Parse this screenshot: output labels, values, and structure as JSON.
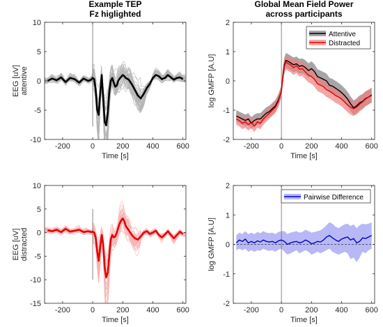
{
  "chart_data": [
    {
      "id": "tep_attentive",
      "type": "line",
      "title": [
        "Example TEP",
        "Fz higlighted"
      ],
      "xlabel": "Time [s]",
      "ylabel": [
        "EEG [uV]",
        "attentive"
      ],
      "xlim": [
        -320,
        620
      ],
      "ylim": [
        -10,
        10
      ],
      "xticks": [
        -200,
        0,
        200,
        400,
        600
      ],
      "yticks": [
        -10,
        -5,
        0,
        5,
        10
      ],
      "colors": {
        "highlight": "#000000",
        "background": "#b4b4b4"
      },
      "vline_x": 0,
      "vline_range": [
        -7.8,
        10
      ],
      "series": [
        {
          "x": [
            -300,
            -270,
            -240,
            -210,
            -180,
            -150,
            -120,
            -90,
            -60,
            -30,
            -10,
            0,
            10,
            20,
            30,
            40,
            50,
            60,
            70,
            80,
            90,
            100,
            110,
            120,
            130,
            140,
            150,
            160,
            170,
            180,
            190,
            200,
            210,
            220,
            240,
            260,
            280,
            300,
            320,
            340,
            360,
            380,
            400,
            420,
            440,
            460,
            480,
            500,
            520,
            540,
            560,
            580,
            600
          ],
          "y": [
            0,
            0.4,
            0.1,
            0.6,
            -0.2,
            0.5,
            0.3,
            -0.3,
            0.4,
            0,
            0.2,
            0.5,
            0.3,
            -1.5,
            -5.0,
            -5.8,
            -2.0,
            1.0,
            -3.0,
            -7.0,
            -7.6,
            -5.5,
            -2.0,
            0,
            0.5,
            -0.3,
            -1.0,
            -0.8,
            0,
            0.4,
            0.7,
            1.0,
            0.8,
            0.5,
            0.2,
            -0.6,
            -1.5,
            -2.5,
            -3.0,
            -2.2,
            -1.2,
            -0.5,
            0.5,
            1.0,
            0.8,
            0.3,
            0.5,
            1.0,
            0.6,
            0.2,
            0.5,
            0.6,
            0.3
          ]
        }
      ]
    },
    {
      "id": "gmfp_both",
      "type": "area",
      "title": [
        "Global Mean Field Power",
        "across participants"
      ],
      "xlabel": "Time [s]",
      "ylabel": "log GMFP [A.U]",
      "xlim": [
        -320,
        620
      ],
      "ylim": [
        -2,
        2
      ],
      "xticks": [
        -200,
        0,
        200,
        400,
        600
      ],
      "yticks": [
        -2,
        -1,
        0,
        1,
        2
      ],
      "legend_position": "top-right",
      "vline_x": 0,
      "series": [
        {
          "name": "Attentive",
          "color": "#000000",
          "band_color": "#808080",
          "x": [
            -300,
            -280,
            -260,
            -240,
            -220,
            -200,
            -180,
            -160,
            -140,
            -120,
            -100,
            -80,
            -60,
            -40,
            -20,
            0,
            10,
            20,
            30,
            40,
            60,
            80,
            100,
            120,
            140,
            160,
            180,
            200,
            220,
            240,
            260,
            280,
            300,
            320,
            340,
            360,
            380,
            400,
            420,
            440,
            460,
            480,
            500,
            520,
            540,
            560,
            580,
            600
          ],
          "y": [
            -1.2,
            -1.25,
            -1.3,
            -1.35,
            -1.3,
            -1.45,
            -1.35,
            -1.3,
            -1.3,
            -1.2,
            -1.1,
            -1.05,
            -0.95,
            -0.85,
            -0.65,
            -0.35,
            0.2,
            0.55,
            0.7,
            0.68,
            0.62,
            0.55,
            0.58,
            0.5,
            0.52,
            0.45,
            0.35,
            0.42,
            0.32,
            0.15,
            0.1,
            0.05,
            0.0,
            -0.15,
            -0.18,
            -0.25,
            -0.32,
            -0.4,
            -0.5,
            -0.62,
            -0.78,
            -0.92,
            -0.85,
            -0.75,
            -0.7,
            -0.6,
            -0.55,
            -0.48
          ],
          "lower": [
            -1.4,
            -1.45,
            -1.5,
            -1.55,
            -1.5,
            -1.65,
            -1.55,
            -1.5,
            -1.5,
            -1.4,
            -1.3,
            -1.25,
            -1.15,
            -1.05,
            -0.85,
            -0.55,
            -0.05,
            0.3,
            0.45,
            0.43,
            0.37,
            0.3,
            0.33,
            0.25,
            0.27,
            0.2,
            0.1,
            0.17,
            0.07,
            -0.1,
            -0.15,
            -0.2,
            -0.25,
            -0.4,
            -0.43,
            -0.5,
            -0.57,
            -0.65,
            -0.75,
            -0.87,
            -1.03,
            -1.17,
            -1.1,
            -1.0,
            -0.95,
            -0.85,
            -0.8,
            -0.73
          ],
          "upper": [
            -1.0,
            -1.05,
            -1.1,
            -1.15,
            -1.1,
            -1.25,
            -1.15,
            -1.1,
            -1.1,
            -1.0,
            -0.9,
            -0.85,
            -0.75,
            -0.65,
            -0.45,
            -0.15,
            0.45,
            0.8,
            0.95,
            0.93,
            0.87,
            0.8,
            0.83,
            0.75,
            0.77,
            0.7,
            0.6,
            0.67,
            0.57,
            0.4,
            0.35,
            0.3,
            0.25,
            0.1,
            0.07,
            0.0,
            -0.07,
            -0.15,
            -0.25,
            -0.37,
            -0.53,
            -0.67,
            -0.6,
            -0.5,
            -0.45,
            -0.35,
            -0.3,
            -0.23
          ]
        },
        {
          "name": "Distracted",
          "color": "#e60000",
          "band_color": "#f08080",
          "x": [
            -300,
            -280,
            -260,
            -240,
            -220,
            -200,
            -180,
            -160,
            -140,
            -120,
            -100,
            -80,
            -60,
            -40,
            -20,
            0,
            10,
            20,
            30,
            40,
            60,
            80,
            100,
            120,
            140,
            160,
            180,
            200,
            220,
            240,
            260,
            280,
            300,
            320,
            340,
            360,
            380,
            400,
            420,
            440,
            460,
            480,
            500,
            520,
            540,
            560,
            580,
            600
          ],
          "y": [
            -1.3,
            -1.35,
            -1.45,
            -1.4,
            -1.5,
            -1.4,
            -1.55,
            -1.4,
            -1.45,
            -1.3,
            -1.2,
            -1.1,
            -1.0,
            -0.9,
            -0.7,
            -0.35,
            0.15,
            0.5,
            0.65,
            0.6,
            0.55,
            0.45,
            0.52,
            0.4,
            0.42,
            0.3,
            0.2,
            0.15,
            0.05,
            -0.1,
            -0.15,
            -0.2,
            -0.3,
            -0.35,
            -0.42,
            -0.5,
            -0.55,
            -0.62,
            -0.72,
            -0.82,
            -0.9,
            -0.95,
            -0.9,
            -0.8,
            -0.72,
            -0.62,
            -0.55,
            -0.5
          ],
          "lower": [
            -1.5,
            -1.55,
            -1.65,
            -1.6,
            -1.7,
            -1.6,
            -1.75,
            -1.6,
            -1.65,
            -1.5,
            -1.4,
            -1.3,
            -1.2,
            -1.1,
            -0.9,
            -0.55,
            -0.1,
            0.25,
            0.4,
            0.35,
            0.3,
            0.2,
            0.27,
            0.15,
            0.17,
            0.05,
            -0.05,
            -0.1,
            -0.2,
            -0.35,
            -0.4,
            -0.45,
            -0.55,
            -0.6,
            -0.67,
            -0.75,
            -0.8,
            -0.87,
            -0.97,
            -1.07,
            -1.15,
            -1.2,
            -1.15,
            -1.05,
            -0.97,
            -0.87,
            -0.8,
            -0.75
          ],
          "upper": [
            -1.1,
            -1.15,
            -1.25,
            -1.2,
            -1.3,
            -1.2,
            -1.35,
            -1.2,
            -1.25,
            -1.1,
            -1.0,
            -0.9,
            -0.8,
            -0.7,
            -0.5,
            -0.15,
            0.4,
            0.75,
            0.9,
            0.85,
            0.8,
            0.7,
            0.77,
            0.65,
            0.67,
            0.55,
            0.45,
            0.4,
            0.3,
            0.15,
            0.1,
            0.05,
            -0.05,
            -0.1,
            -0.17,
            -0.25,
            -0.3,
            -0.37,
            -0.47,
            -0.57,
            -0.65,
            -0.7,
            -0.65,
            -0.55,
            -0.47,
            -0.37,
            -0.3,
            -0.25
          ]
        }
      ]
    },
    {
      "id": "tep_distracted",
      "type": "line",
      "xlabel": "Time [s]",
      "ylabel": [
        "EEG [uV]",
        "distracted"
      ],
      "xlim": [
        -320,
        620
      ],
      "ylim": [
        -15,
        10
      ],
      "xticks": [
        -200,
        0,
        200,
        400,
        600
      ],
      "yticks": [
        -15,
        -10,
        -5,
        0,
        5,
        10
      ],
      "colors": {
        "highlight": "#e60000",
        "background": "#f6b4b4"
      },
      "vline_x": 0,
      "vline_range": [
        -10,
        5
      ],
      "series": [
        {
          "x": [
            -300,
            -270,
            -240,
            -210,
            -180,
            -150,
            -120,
            -90,
            -60,
            -30,
            -10,
            0,
            10,
            20,
            30,
            40,
            50,
            60,
            70,
            80,
            90,
            100,
            110,
            120,
            130,
            140,
            150,
            160,
            170,
            180,
            190,
            200,
            210,
            220,
            240,
            260,
            280,
            300,
            320,
            340,
            360,
            380,
            400,
            420,
            440,
            460,
            480,
            500,
            520,
            540,
            560,
            580,
            600
          ],
          "y": [
            0.5,
            0.3,
            0.6,
            0.1,
            0.8,
            0.2,
            0.4,
            0.6,
            0.1,
            0.3,
            0.1,
            0.2,
            0,
            -1.0,
            -4.0,
            -6.0,
            -3.0,
            -0.5,
            -2.5,
            -7.5,
            -9.5,
            -8.5,
            -5.0,
            -1.5,
            -0.5,
            -1.0,
            -0.8,
            0,
            1.0,
            2.0,
            2.6,
            3.0,
            2.4,
            1.4,
            0.5,
            -0.5,
            -1.2,
            -1.5,
            -0.8,
            0,
            0.3,
            -0.3,
            0,
            0.4,
            -0.5,
            -1.0,
            -0.4,
            0.3,
            -0.5,
            -1.2,
            -0.5,
            0.2,
            -0.3
          ]
        }
      ]
    },
    {
      "id": "gmfp_difference",
      "type": "area",
      "xlabel": "Time [s]",
      "ylabel": "log GMFP [A.U]",
      "xlim": [
        -320,
        620
      ],
      "ylim": [
        -2,
        2
      ],
      "xticks": [
        -200,
        0,
        200,
        400,
        600
      ],
      "yticks": [
        -2,
        -1,
        0,
        1,
        2
      ],
      "legend_position": "top-right",
      "vline_x": 0,
      "zero_line": true,
      "series": [
        {
          "name": "Pairwise Difference",
          "color": "#0000cc",
          "band_color": "#9a9af2",
          "x": [
            -300,
            -280,
            -260,
            -240,
            -220,
            -200,
            -180,
            -160,
            -140,
            -120,
            -100,
            -80,
            -60,
            -40,
            -20,
            0,
            20,
            40,
            60,
            80,
            100,
            120,
            140,
            160,
            180,
            200,
            220,
            240,
            260,
            280,
            300,
            320,
            340,
            360,
            380,
            400,
            420,
            440,
            460,
            480,
            500,
            520,
            540,
            560,
            580,
            600
          ],
          "y": [
            0.05,
            0.15,
            0.1,
            0.18,
            0.05,
            0.1,
            0.05,
            0.12,
            0.08,
            0.15,
            0.1,
            0.08,
            0.1,
            0.05,
            0.12,
            0.15,
            0.1,
            0,
            0.05,
            0.08,
            0.1,
            0.05,
            0.08,
            0.15,
            0.1,
            0.02,
            0.05,
            0.1,
            0.08,
            0.15,
            0.25,
            0.3,
            0.22,
            0.15,
            0.1,
            0.18,
            0.22,
            0.25,
            0.15,
            0.2,
            0.05,
            0.1,
            0.22,
            0.2,
            0.25,
            0.3
          ],
          "lower": [
            -0.2,
            -0.15,
            -0.2,
            -0.15,
            -0.25,
            -0.2,
            -0.25,
            -0.2,
            -0.22,
            -0.15,
            -0.2,
            -0.22,
            -0.2,
            -0.25,
            -0.18,
            -0.15,
            -0.25,
            -0.35,
            -0.3,
            -0.25,
            -0.2,
            -0.3,
            -0.25,
            -0.2,
            -0.25,
            -0.35,
            -0.3,
            -0.25,
            -0.3,
            -0.25,
            -0.2,
            -0.15,
            -0.25,
            -0.3,
            -0.35,
            -0.3,
            -0.25,
            -0.3,
            -0.5,
            -0.45,
            -0.6,
            -0.45,
            -0.25,
            -0.3,
            -0.2,
            -0.15
          ],
          "upper": [
            0.3,
            0.4,
            0.35,
            0.45,
            0.35,
            0.4,
            0.35,
            0.42,
            0.38,
            0.45,
            0.4,
            0.38,
            0.4,
            0.35,
            0.42,
            0.45,
            0.45,
            0.35,
            0.4,
            0.42,
            0.45,
            0.4,
            0.42,
            0.5,
            0.45,
            0.4,
            0.42,
            0.45,
            0.48,
            0.55,
            0.65,
            0.75,
            0.7,
            0.6,
            0.55,
            0.62,
            0.68,
            0.7,
            0.62,
            0.68,
            0.55,
            0.65,
            0.7,
            0.68,
            0.7,
            0.75
          ]
        }
      ]
    }
  ]
}
